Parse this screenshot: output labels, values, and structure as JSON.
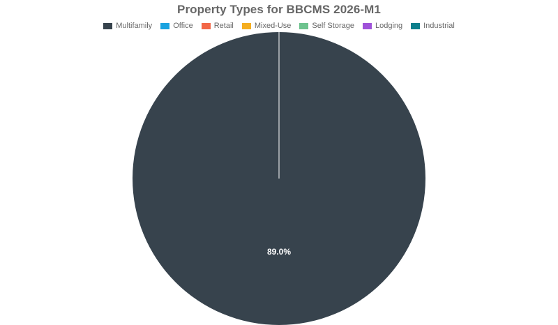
{
  "chart_data": {
    "type": "pie",
    "title": "Property Types for BBCMS 2026-M1",
    "categories": [
      "Multifamily",
      "Office",
      "Retail",
      "Mixed-Use",
      "Self Storage",
      "Lodging",
      "Industrial"
    ],
    "colors": [
      "#37434d",
      "#1aa3e0",
      "#f26646",
      "#f5ae20",
      "#6dc38e",
      "#9f52d9",
      "#0d7f8c"
    ],
    "values": [
      89.0,
      0,
      0,
      0,
      0,
      0,
      0
    ],
    "data_labels": [
      "89.0%",
      "",
      "",
      "",
      "",
      "",
      ""
    ],
    "legend_position": "top",
    "slice_border_color": "#ffffff"
  }
}
